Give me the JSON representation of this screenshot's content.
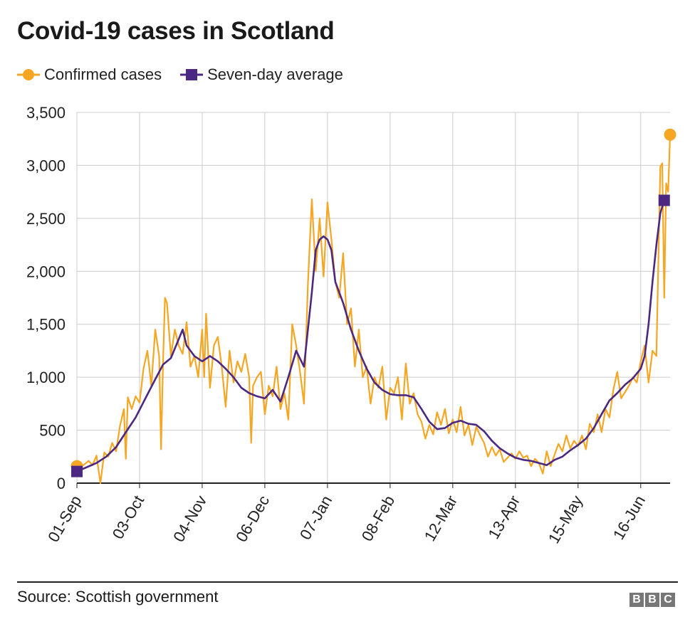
{
  "chart_data": {
    "type": "line",
    "title": "Covid-19 cases in Scotland",
    "xlabel": "",
    "ylabel": "",
    "ylim": [
      0,
      3500
    ],
    "yticks": [
      0,
      500,
      1000,
      1500,
      2000,
      2500,
      3000,
      3500
    ],
    "ytick_labels": [
      "0",
      "500",
      "1,000",
      "1,500",
      "2,000",
      "2,500",
      "3,000",
      "3,500"
    ],
    "x_start": "01-Sep",
    "xticks": [
      {
        "label": "01-Sep",
        "day": 0
      },
      {
        "label": "03-Oct",
        "day": 32
      },
      {
        "label": "04-Nov",
        "day": 64
      },
      {
        "label": "06-Dec",
        "day": 96
      },
      {
        "label": "07-Jan",
        "day": 128
      },
      {
        "label": "08-Feb",
        "day": 160
      },
      {
        "label": "12-Mar",
        "day": 192
      },
      {
        "label": "13-Apr",
        "day": 224
      },
      {
        "label": "15-May",
        "day": 256
      },
      {
        "label": "16-Jun",
        "day": 288
      }
    ],
    "grid": true,
    "legend_position": "top-left",
    "series": [
      {
        "name": "Confirmed cases",
        "color": "#f5a623",
        "marker": "circle",
        "points": [
          [
            0,
            160
          ],
          [
            2,
            150
          ],
          [
            4,
            180
          ],
          [
            6,
            210
          ],
          [
            8,
            170
          ],
          [
            10,
            260
          ],
          [
            12,
            0
          ],
          [
            14,
            290
          ],
          [
            16,
            250
          ],
          [
            18,
            380
          ],
          [
            20,
            300
          ],
          [
            22,
            540
          ],
          [
            24,
            700
          ],
          [
            25,
            230
          ],
          [
            26,
            810
          ],
          [
            28,
            700
          ],
          [
            30,
            820
          ],
          [
            32,
            760
          ],
          [
            34,
            1080
          ],
          [
            36,
            1250
          ],
          [
            38,
            920
          ],
          [
            40,
            1450
          ],
          [
            42,
            1200
          ],
          [
            43,
            320
          ],
          [
            44,
            1150
          ],
          [
            45,
            1750
          ],
          [
            46,
            1700
          ],
          [
            48,
            1200
          ],
          [
            50,
            1450
          ],
          [
            52,
            1300
          ],
          [
            54,
            1220
          ],
          [
            56,
            1520
          ],
          [
            58,
            1100
          ],
          [
            60,
            1200
          ],
          [
            62,
            1000
          ],
          [
            64,
            1450
          ],
          [
            65,
            1000
          ],
          [
            66,
            1600
          ],
          [
            68,
            900
          ],
          [
            70,
            1300
          ],
          [
            72,
            1380
          ],
          [
            74,
            1100
          ],
          [
            76,
            720
          ],
          [
            78,
            1250
          ],
          [
            80,
            950
          ],
          [
            82,
            1150
          ],
          [
            84,
            1050
          ],
          [
            86,
            1220
          ],
          [
            88,
            1000
          ],
          [
            89,
            380
          ],
          [
            90,
            920
          ],
          [
            92,
            1000
          ],
          [
            94,
            1050
          ],
          [
            96,
            650
          ],
          [
            98,
            920
          ],
          [
            100,
            820
          ],
          [
            102,
            1100
          ],
          [
            104,
            700
          ],
          [
            106,
            850
          ],
          [
            108,
            600
          ],
          [
            110,
            1500
          ],
          [
            112,
            1300
          ],
          [
            114,
            1050
          ],
          [
            116,
            750
          ],
          [
            118,
            1880
          ],
          [
            120,
            2680
          ],
          [
            122,
            2000
          ],
          [
            124,
            2500
          ],
          [
            126,
            1950
          ],
          [
            128,
            2650
          ],
          [
            130,
            2300
          ],
          [
            132,
            1900
          ],
          [
            134,
            1750
          ],
          [
            136,
            2170
          ],
          [
            138,
            1500
          ],
          [
            140,
            1650
          ],
          [
            142,
            1100
          ],
          [
            144,
            1450
          ],
          [
            146,
            1000
          ],
          [
            148,
            1100
          ],
          [
            150,
            750
          ],
          [
            152,
            1000
          ],
          [
            154,
            900
          ],
          [
            156,
            1100
          ],
          [
            158,
            600
          ],
          [
            160,
            900
          ],
          [
            162,
            850
          ],
          [
            164,
            1000
          ],
          [
            166,
            600
          ],
          [
            168,
            1130
          ],
          [
            170,
            750
          ],
          [
            172,
            850
          ],
          [
            174,
            650
          ],
          [
            176,
            580
          ],
          [
            178,
            420
          ],
          [
            180,
            550
          ],
          [
            182,
            460
          ],
          [
            184,
            670
          ],
          [
            186,
            550
          ],
          [
            188,
            700
          ],
          [
            190,
            470
          ],
          [
            192,
            600
          ],
          [
            194,
            480
          ],
          [
            196,
            720
          ],
          [
            198,
            450
          ],
          [
            200,
            550
          ],
          [
            202,
            360
          ],
          [
            204,
            530
          ],
          [
            206,
            450
          ],
          [
            208,
            380
          ],
          [
            210,
            250
          ],
          [
            212,
            340
          ],
          [
            214,
            260
          ],
          [
            216,
            320
          ],
          [
            218,
            200
          ],
          [
            220,
            240
          ],
          [
            222,
            280
          ],
          [
            224,
            230
          ],
          [
            226,
            300
          ],
          [
            228,
            240
          ],
          [
            230,
            260
          ],
          [
            232,
            160
          ],
          [
            234,
            230
          ],
          [
            236,
            190
          ],
          [
            238,
            90
          ],
          [
            240,
            300
          ],
          [
            242,
            160
          ],
          [
            244,
            270
          ],
          [
            246,
            370
          ],
          [
            248,
            300
          ],
          [
            250,
            450
          ],
          [
            252,
            330
          ],
          [
            254,
            400
          ],
          [
            256,
            350
          ],
          [
            258,
            450
          ],
          [
            260,
            320
          ],
          [
            262,
            560
          ],
          [
            264,
            480
          ],
          [
            266,
            650
          ],
          [
            268,
            480
          ],
          [
            270,
            700
          ],
          [
            272,
            620
          ],
          [
            274,
            880
          ],
          [
            276,
            1050
          ],
          [
            278,
            800
          ],
          [
            280,
            860
          ],
          [
            282,
            920
          ],
          [
            284,
            1000
          ],
          [
            286,
            950
          ],
          [
            288,
            1150
          ],
          [
            290,
            1300
          ],
          [
            292,
            950
          ],
          [
            294,
            1250
          ],
          [
            296,
            1200
          ],
          [
            298,
            2990
          ],
          [
            299,
            3020
          ],
          [
            300,
            1750
          ],
          [
            301,
            2830
          ],
          [
            302,
            2750
          ],
          [
            303,
            3290
          ]
        ]
      },
      {
        "name": "Seven-day average",
        "color": "#4b2882",
        "marker": "square",
        "points": [
          [
            0,
            110
          ],
          [
            5,
            150
          ],
          [
            10,
            190
          ],
          [
            15,
            250
          ],
          [
            20,
            340
          ],
          [
            25,
            480
          ],
          [
            30,
            620
          ],
          [
            35,
            800
          ],
          [
            40,
            980
          ],
          [
            44,
            1120
          ],
          [
            48,
            1180
          ],
          [
            52,
            1360
          ],
          [
            54,
            1450
          ],
          [
            56,
            1300
          ],
          [
            60,
            1200
          ],
          [
            64,
            1150
          ],
          [
            68,
            1200
          ],
          [
            72,
            1150
          ],
          [
            76,
            1080
          ],
          [
            80,
            1000
          ],
          [
            84,
            900
          ],
          [
            88,
            850
          ],
          [
            92,
            820
          ],
          [
            96,
            800
          ],
          [
            100,
            880
          ],
          [
            104,
            770
          ],
          [
            108,
            1000
          ],
          [
            112,
            1250
          ],
          [
            116,
            1100
          ],
          [
            120,
            1800
          ],
          [
            122,
            2200
          ],
          [
            124,
            2300
          ],
          [
            126,
            2330
          ],
          [
            128,
            2300
          ],
          [
            130,
            2200
          ],
          [
            132,
            1900
          ],
          [
            136,
            1700
          ],
          [
            140,
            1450
          ],
          [
            144,
            1250
          ],
          [
            148,
            1080
          ],
          [
            152,
            950
          ],
          [
            156,
            880
          ],
          [
            160,
            840
          ],
          [
            164,
            830
          ],
          [
            168,
            830
          ],
          [
            172,
            810
          ],
          [
            176,
            700
          ],
          [
            180,
            580
          ],
          [
            184,
            510
          ],
          [
            188,
            520
          ],
          [
            192,
            570
          ],
          [
            196,
            590
          ],
          [
            200,
            560
          ],
          [
            204,
            550
          ],
          [
            208,
            490
          ],
          [
            212,
            400
          ],
          [
            216,
            330
          ],
          [
            220,
            280
          ],
          [
            224,
            240
          ],
          [
            228,
            220
          ],
          [
            232,
            210
          ],
          [
            236,
            190
          ],
          [
            240,
            170
          ],
          [
            244,
            220
          ],
          [
            248,
            250
          ],
          [
            252,
            310
          ],
          [
            256,
            360
          ],
          [
            260,
            420
          ],
          [
            264,
            520
          ],
          [
            268,
            650
          ],
          [
            272,
            780
          ],
          [
            276,
            850
          ],
          [
            280,
            930
          ],
          [
            284,
            990
          ],
          [
            288,
            1080
          ],
          [
            290,
            1200
          ],
          [
            292,
            1500
          ],
          [
            294,
            1900
          ],
          [
            296,
            2250
          ],
          [
            298,
            2550
          ],
          [
            300,
            2670
          ]
        ]
      }
    ]
  },
  "footer": {
    "source": "Source: Scottish government",
    "logo_letters": [
      "B",
      "B",
      "C"
    ]
  }
}
